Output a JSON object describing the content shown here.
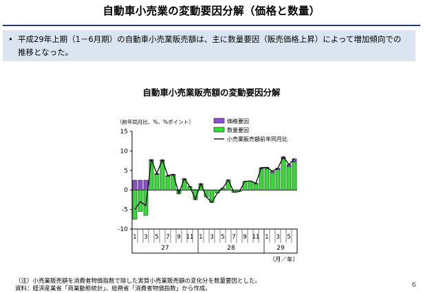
{
  "slide": {
    "title": "自動車小売業の変動要因分解（価格と数量）",
    "bullet_marker": "•",
    "summary": "平成29年上期（1－6月期）の自動車小売業販売額は、主に数量要因（販売価格上昇）によって増加傾向での推移となった。",
    "page_number": "6"
  },
  "notes": {
    "note1": "（注）小売業販売額を消費者物価指数で除した実質小売業販売額の変化分を数量要因とした。",
    "note2": "資料：経済産業省「商業動態統計」、総務省「消費者物価指数」から作成。"
  },
  "colors": {
    "price": "#8a4fd0",
    "quantity": "#33dd33",
    "line": "#000000",
    "title_rule": "#1f3a6b",
    "summary_bg": "#dbe5f1"
  },
  "chart_data": {
    "type": "bar",
    "title": "自動車小売業販売額の変動要因分解",
    "unit_label": "（前年同月比、%、%ポイント）",
    "xlabel": "（月／年）",
    "ylim": [
      -10,
      15
    ],
    "yticks": [
      -10,
      -5,
      0,
      5,
      10,
      15
    ],
    "months": [
      "1",
      "2",
      "3",
      "4",
      "5",
      "6",
      "7",
      "8",
      "9",
      "10",
      "11",
      "12",
      "1",
      "2",
      "3",
      "4",
      "5",
      "6",
      "7",
      "8",
      "9",
      "10",
      "11",
      "12",
      "1",
      "2",
      "3",
      "4",
      "5",
      "6"
    ],
    "month_tick_labels": [
      "1",
      "3",
      "5",
      "7",
      "9",
      "11",
      "1",
      "3",
      "5",
      "7",
      "9",
      "11",
      "1",
      "3",
      "5"
    ],
    "year_labels": [
      "27",
      "28",
      "29"
    ],
    "legend": [
      "価格要因",
      "数量要因",
      "小売業販売額前年同月比"
    ],
    "legend_position": "top-right",
    "series": [
      {
        "name": "価格要因",
        "values": [
          2.5,
          2.5,
          2.5,
          0.3,
          0.2,
          0.2,
          0.2,
          0.2,
          0.1,
          0.1,
          0.1,
          0.1,
          0.1,
          0,
          0,
          0,
          0,
          0,
          0,
          0,
          0,
          0,
          0.2,
          0.2,
          0.3,
          0.4,
          0.4,
          0.5,
          0.5,
          0.8
        ]
      },
      {
        "name": "数量要因",
        "values": [
          -7.5,
          -5.5,
          -6.5,
          7.5,
          4.0,
          7.5,
          3.5,
          3.8,
          -1.0,
          2.8,
          0.8,
          -2.5,
          1.5,
          -1.8,
          -3.2,
          -0.8,
          0.5,
          2.6,
          -0.6,
          -0.4,
          2.2,
          2.3,
          1.5,
          5.5,
          5.5,
          4.4,
          5.2,
          8.0,
          6.0,
          7.2
        ]
      },
      {
        "name": "小売業販売額前年同月比",
        "values": [
          -5.0,
          -3.0,
          -4.0,
          7.8,
          4.2,
          7.7,
          3.7,
          4.0,
          -0.9,
          2.9,
          0.9,
          -2.4,
          1.6,
          -1.8,
          -3.2,
          -0.8,
          0.5,
          2.6,
          -0.6,
          -0.4,
          2.2,
          2.3,
          1.7,
          5.7,
          5.8,
          4.8,
          5.6,
          8.5,
          6.5,
          8.0
        ]
      }
    ]
  }
}
